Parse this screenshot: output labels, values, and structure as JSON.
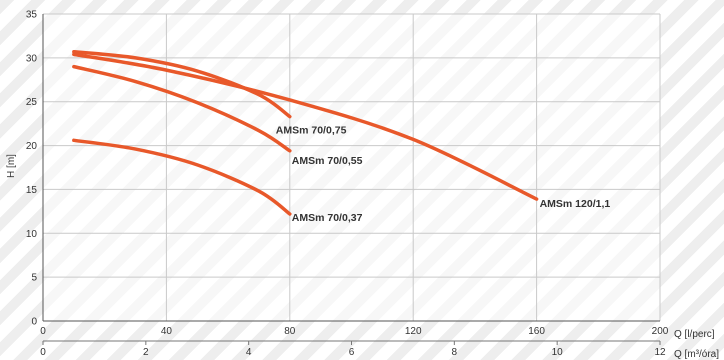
{
  "chart_data": {
    "type": "line",
    "ylabel": "H [m]",
    "xlabel": "Q [l/perc]",
    "xlabel2": "Q [m³/óra]",
    "xlim": [
      0,
      200
    ],
    "ylim": [
      0,
      35
    ],
    "xlim2": [
      0,
      12
    ],
    "x_ticks": [
      0,
      40,
      80,
      120,
      160,
      200
    ],
    "y_ticks": [
      0,
      5,
      10,
      15,
      20,
      25,
      30,
      35
    ],
    "x2_ticks": [
      0,
      2,
      4,
      6,
      8,
      10,
      12
    ],
    "grid": true,
    "line_color": "#e8582a",
    "series": [
      {
        "name": "AMSm 70/0,75",
        "x": [
          10,
          30,
          50,
          70,
          80
        ],
        "y": [
          30.7,
          30.0,
          28.5,
          25.8,
          23.3
        ]
      },
      {
        "name": "AMSm 70/0,55",
        "x": [
          10,
          30,
          50,
          70,
          80
        ],
        "y": [
          29.0,
          27.3,
          24.9,
          21.7,
          19.4
        ]
      },
      {
        "name": "AMSm 120/1,1",
        "x": [
          10,
          40,
          80,
          120,
          160
        ],
        "y": [
          30.4,
          28.6,
          25.2,
          20.7,
          13.9
        ]
      },
      {
        "name": "AMSm 70/0,37",
        "x": [
          10,
          30,
          50,
          70,
          80
        ],
        "y": [
          20.6,
          19.6,
          17.8,
          14.8,
          12.2
        ]
      }
    ]
  }
}
